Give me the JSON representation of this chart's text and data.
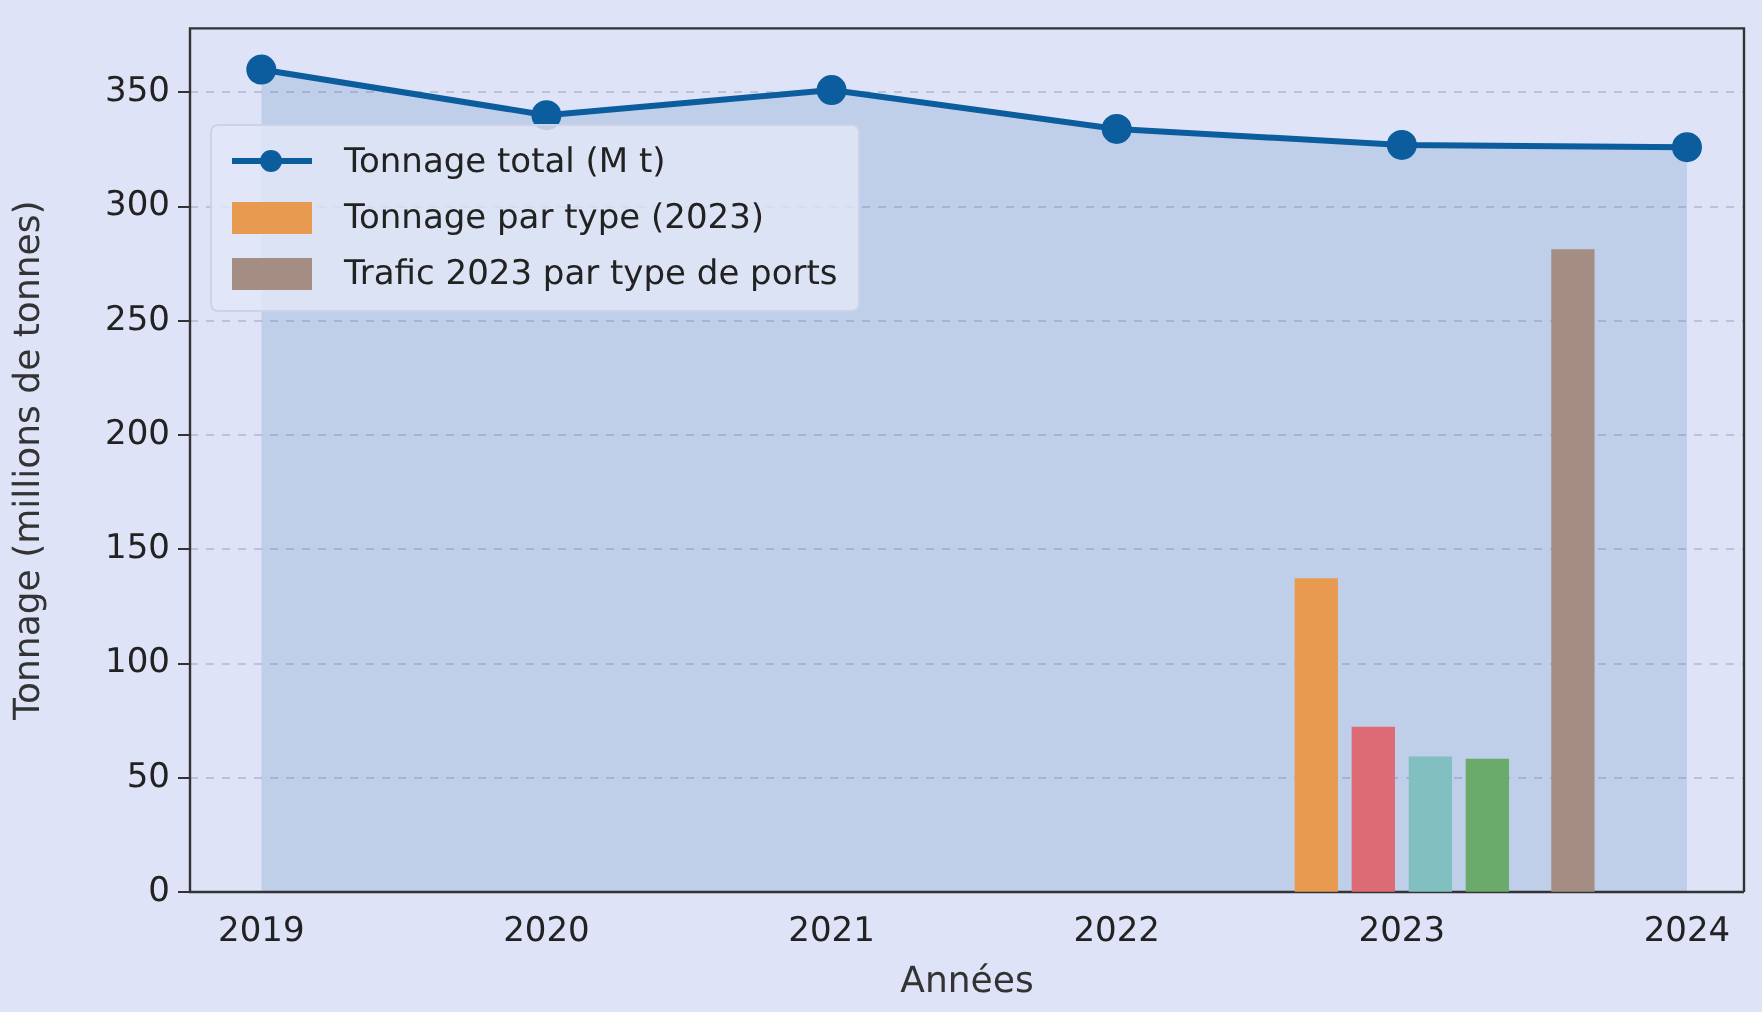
{
  "chart_data": {
    "type": "area",
    "xlabel": "Années",
    "ylabel": "Tonnage (millions de tonnes)",
    "xlim": [
      2018.75,
      2024.2
    ],
    "ylim": [
      0,
      378
    ],
    "xticks": [
      2019,
      2020,
      2021,
      2022,
      2023,
      2024
    ],
    "yticks": [
      0,
      50,
      100,
      150,
      200,
      250,
      300,
      350
    ],
    "grid": "y",
    "legend": "top left",
    "marker": "circle",
    "series": [
      {
        "name": "Tonnage total (M t)",
        "color": "#0b5d9e",
        "x": [
          2019,
          2020,
          2021,
          2022,
          2023,
          2024
        ],
        "values": [
          360,
          340,
          351,
          334,
          327,
          326
        ]
      },
      {
        "type": "bar",
        "name": "Tonnage par type (2023)",
        "color": "#e89a50",
        "colors": [
          "#e89a50",
          "#dc6b75",
          "#82bfc0",
          "#6aaa6a"
        ],
        "x": [
          2022.7,
          2022.9,
          2023.1,
          2023.3
        ],
        "values": [
          137,
          72,
          59,
          58
        ]
      },
      {
        "type": "bar",
        "name": "Trafic 2023 par type de ports",
        "color": "#a48e84",
        "x": [
          2023.6
        ],
        "values": [
          281
        ]
      }
    ]
  }
}
